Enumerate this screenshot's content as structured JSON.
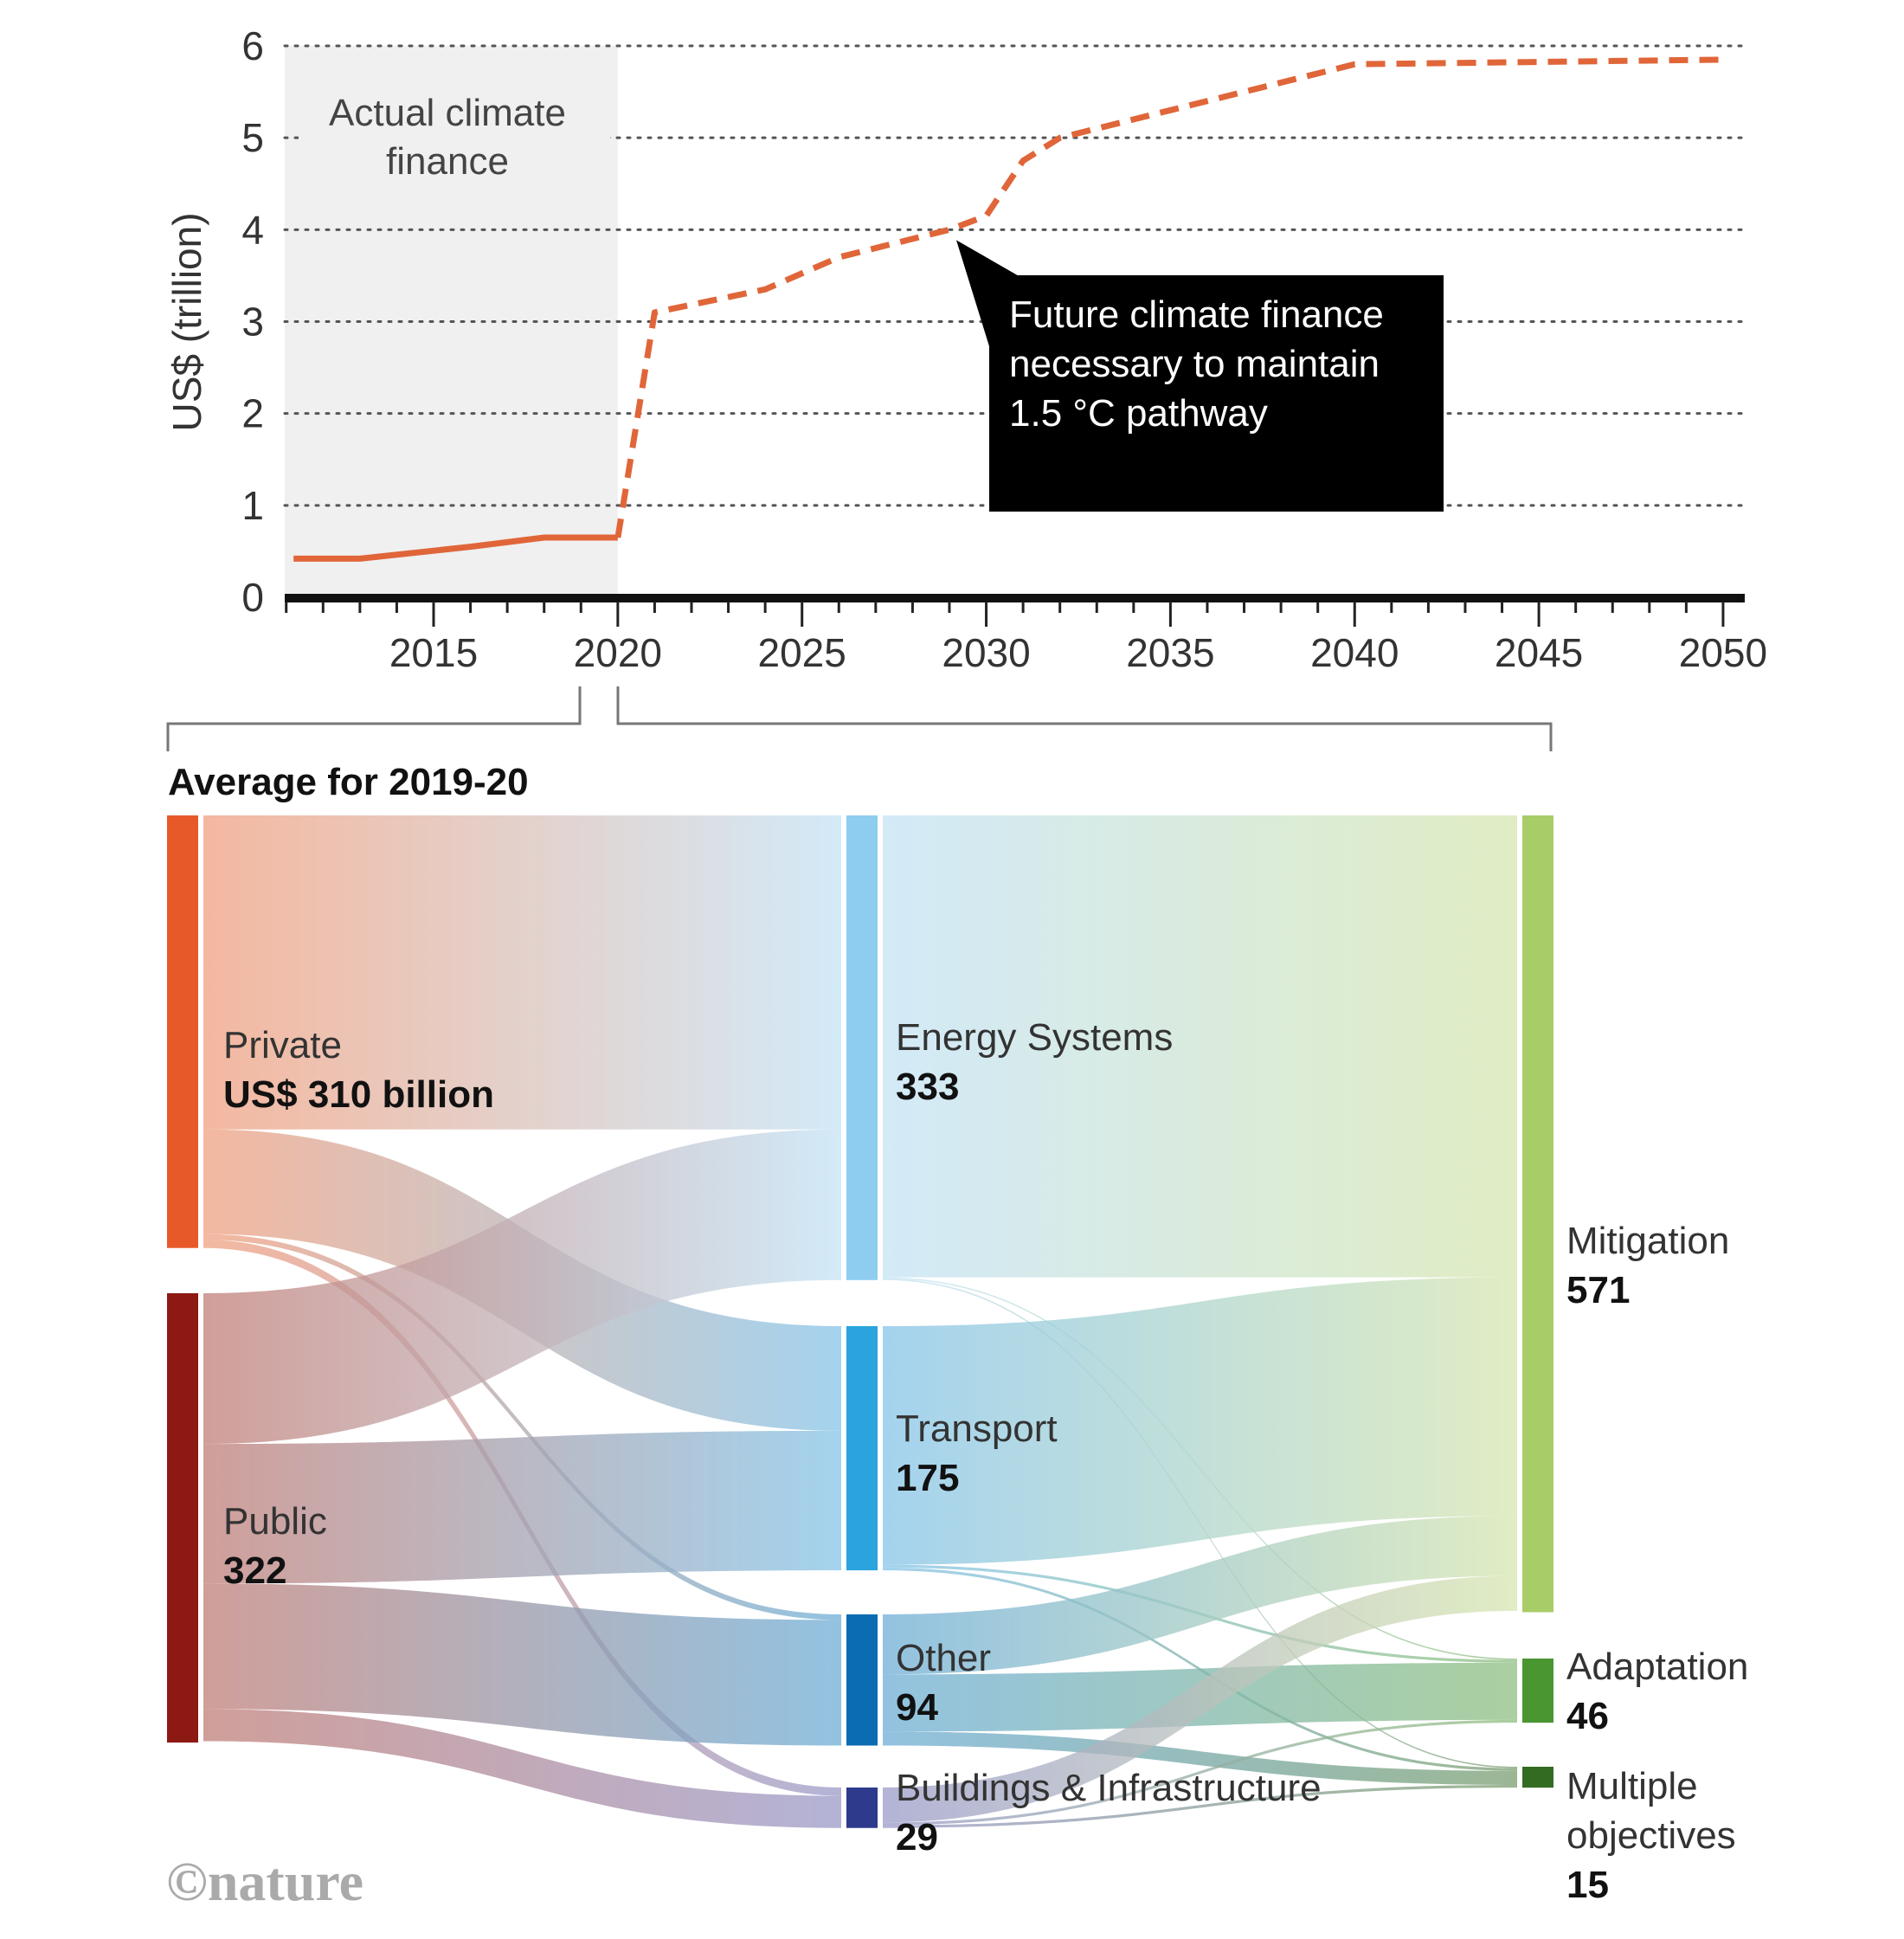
{
  "chart_data": [
    {
      "type": "line",
      "title": "",
      "ylabel": "US$ (trillion)",
      "xlabel": "",
      "ylim": [
        0,
        6
      ],
      "xlim": [
        2011,
        2050
      ],
      "yticks": [
        "0",
        "1",
        "2",
        "3",
        "4",
        "5",
        "6"
      ],
      "xticks": [
        "2015",
        "2020",
        "2025",
        "2030",
        "2035",
        "2040",
        "2045",
        "2050"
      ],
      "grid": "horizontal-dotted",
      "shaded_region": {
        "from": 2011,
        "to": 2020,
        "label_lines": [
          "Actual climate",
          "finance"
        ]
      },
      "series": [
        {
          "name": "Actual climate finance",
          "style": "solid",
          "color": "#e0663a",
          "x": [
            2011,
            2013,
            2016,
            2018,
            2020
          ],
          "y": [
            0.42,
            0.42,
            0.55,
            0.65,
            0.65
          ]
        },
        {
          "name": "Future climate finance necessary to maintain 1.5 °C pathway",
          "style": "dashed",
          "color": "#e0663a",
          "x": [
            2020,
            2021,
            2024,
            2026,
            2029,
            2030,
            2031,
            2032,
            2035,
            2040,
            2050
          ],
          "y": [
            0.65,
            3.1,
            3.35,
            3.7,
            4.0,
            4.15,
            4.75,
            5.0,
            5.3,
            5.8,
            5.85
          ]
        }
      ],
      "annotations": [
        {
          "text_lines": [
            "Future climate finance",
            "necessary to maintain",
            "1.5 °C pathway"
          ],
          "points_to_year": 2029,
          "points_to_value": 4.0,
          "style": "black-box"
        }
      ]
    },
    {
      "type": "sankey",
      "title": "Average for 2019-20",
      "units": "US$ billion",
      "nodes": [
        {
          "id": "private",
          "name": "Private",
          "value_label": "US$ 310 billion",
          "value": 310,
          "column": 0,
          "color": "#e8592a"
        },
        {
          "id": "public",
          "name": "Public",
          "value_label": "322",
          "value": 322,
          "column": 0,
          "color": "#8c1a12"
        },
        {
          "id": "energy",
          "name": "Energy Systems",
          "value_label": "333",
          "value": 333,
          "column": 1,
          "color": "#8fcdf0"
        },
        {
          "id": "transport",
          "name": "Transport",
          "value_label": "175",
          "value": 175,
          "column": 1,
          "color": "#2ba3dd"
        },
        {
          "id": "other",
          "name": "Other",
          "value_label": "94",
          "value": 94,
          "column": 1,
          "color": "#0b6cb3"
        },
        {
          "id": "buildings",
          "name": "Buildings & Infrastructure",
          "value_label": "29",
          "value": 29,
          "column": 1,
          "color": "#2e3a8c"
        },
        {
          "id": "mitigation",
          "name": "Mitigation",
          "value_label": "571",
          "value": 571,
          "column": 2,
          "color": "#a8cc68"
        },
        {
          "id": "adaptation",
          "name": "Adaptation",
          "value_label": "46",
          "value": 46,
          "column": 2,
          "color": "#4a9631"
        },
        {
          "id": "multiple",
          "name": "Multiple objectives",
          "value_label": "15",
          "value": 15,
          "column": 2,
          "color": "#336b22"
        }
      ],
      "links": [
        {
          "source": "private",
          "target": "energy",
          "value": 225
        },
        {
          "source": "private",
          "target": "transport",
          "value": 75
        },
        {
          "source": "private",
          "target": "other",
          "value": 4
        },
        {
          "source": "private",
          "target": "buildings",
          "value": 6
        },
        {
          "source": "public",
          "target": "energy",
          "value": 108
        },
        {
          "source": "public",
          "target": "transport",
          "value": 100
        },
        {
          "source": "public",
          "target": "other",
          "value": 90
        },
        {
          "source": "public",
          "target": "buildings",
          "value": 23
        },
        {
          "source": "energy",
          "target": "mitigation",
          "value": 331
        },
        {
          "source": "energy",
          "target": "adaptation",
          "value": 1
        },
        {
          "source": "energy",
          "target": "multiple",
          "value": 1
        },
        {
          "source": "transport",
          "target": "mitigation",
          "value": 171
        },
        {
          "source": "transport",
          "target": "adaptation",
          "value": 2
        },
        {
          "source": "transport",
          "target": "multiple",
          "value": 2
        },
        {
          "source": "other",
          "target": "mitigation",
          "value": 43
        },
        {
          "source": "other",
          "target": "adaptation",
          "value": 41
        },
        {
          "source": "other",
          "target": "multiple",
          "value": 10
        },
        {
          "source": "buildings",
          "target": "mitigation",
          "value": 25
        },
        {
          "source": "buildings",
          "target": "adaptation",
          "value": 2
        },
        {
          "source": "buildings",
          "target": "multiple",
          "value": 2
        }
      ]
    }
  ],
  "credit": "©nature"
}
